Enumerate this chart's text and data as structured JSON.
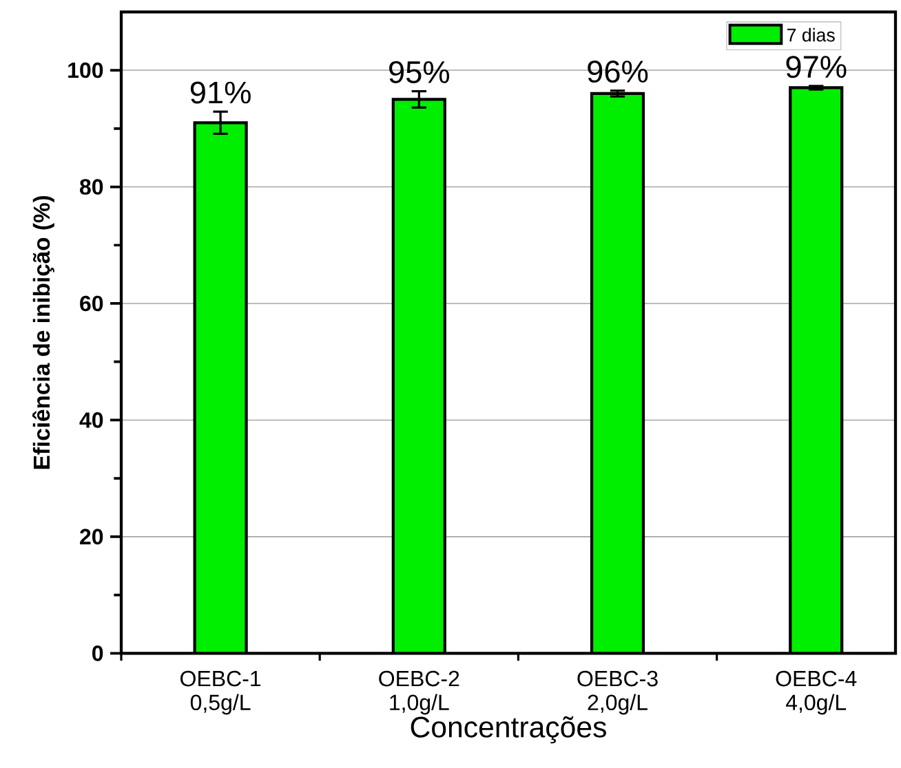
{
  "chart_data": {
    "type": "bar",
    "xlabel": "Concentrações",
    "ylabel": "Eficiência de inibição (%)",
    "categories": [
      "OEBC-1 0,5g/L",
      "OEBC-2 1,0g/L",
      "OEBC-3 2,0g/L",
      "OEBC-4 4,0g/L"
    ],
    "series": [
      {
        "name": "7 dias",
        "color": "#00ee00",
        "values": [
          91,
          95,
          96,
          97
        ],
        "errors": [
          1.9,
          1.4,
          0.5,
          0.3
        ],
        "value_labels": [
          "91%",
          "95%",
          "96%",
          "97%"
        ]
      }
    ],
    "ylim": [
      0,
      110
    ],
    "yticks": [
      0,
      20,
      40,
      60,
      80,
      100
    ],
    "grid": "y",
    "legend": "top right"
  }
}
